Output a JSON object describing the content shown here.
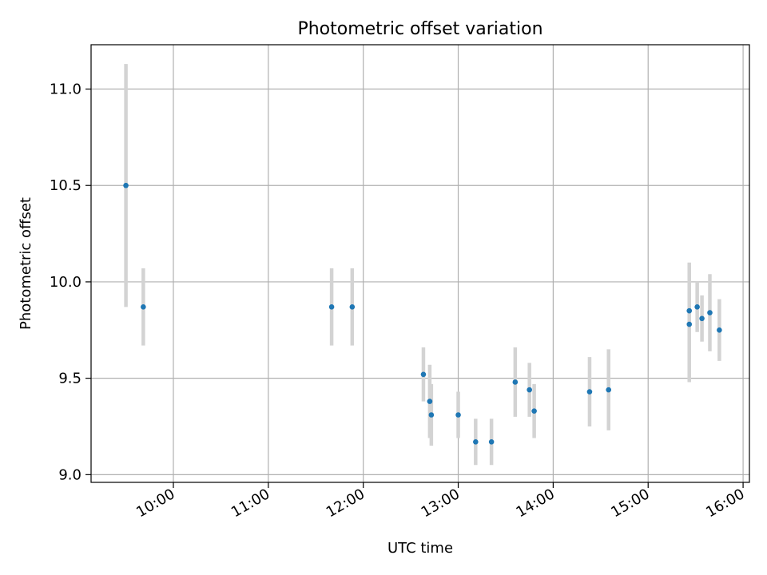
{
  "chart_data": {
    "type": "scatter",
    "title": "Photometric offset variation",
    "xlabel": "UTC time",
    "ylabel": "Photometric offset",
    "x_tick_labels": [
      "10:00",
      "11:00",
      "12:00",
      "13:00",
      "14:00",
      "15:00",
      "16:00"
    ],
    "y_tick_labels": [
      "9.0",
      "9.5",
      "10.0",
      "10.5",
      "11.0"
    ],
    "y_ticks": [
      9.0,
      9.5,
      10.0,
      10.5,
      11.0
    ],
    "xlim": [
      "09:08",
      "16:04"
    ],
    "ylim": [
      8.96,
      11.23
    ],
    "grid": true,
    "point_color": "#1f77b4",
    "errorbar_color": "#d3d3d3",
    "points": [
      {
        "x": "09:30",
        "y": 10.5,
        "err": 0.63
      },
      {
        "x": "09:41",
        "y": 9.87,
        "err": 0.2
      },
      {
        "x": "11:40",
        "y": 9.87,
        "err": 0.2
      },
      {
        "x": "11:53",
        "y": 9.87,
        "err": 0.2
      },
      {
        "x": "12:38",
        "y": 9.52,
        "err": 0.14
      },
      {
        "x": "12:42",
        "y": 9.38,
        "err": 0.19
      },
      {
        "x": "12:43",
        "y": 9.31,
        "err": 0.16
      },
      {
        "x": "13:00",
        "y": 9.31,
        "err": 0.12
      },
      {
        "x": "13:11",
        "y": 9.17,
        "err": 0.12
      },
      {
        "x": "13:21",
        "y": 9.17,
        "err": 0.12
      },
      {
        "x": "13:36",
        "y": 9.48,
        "err": 0.18
      },
      {
        "x": "13:45",
        "y": 9.44,
        "err": 0.14
      },
      {
        "x": "13:48",
        "y": 9.33,
        "err": 0.14
      },
      {
        "x": "14:23",
        "y": 9.43,
        "err": 0.18
      },
      {
        "x": "14:35",
        "y": 9.44,
        "err": 0.21
      },
      {
        "x": "15:26",
        "y": 9.85,
        "err": 0.25
      },
      {
        "x": "15:26",
        "y": 9.78,
        "err": 0.3
      },
      {
        "x": "15:31",
        "y": 9.87,
        "err": 0.13
      },
      {
        "x": "15:34",
        "y": 9.81,
        "err": 0.12
      },
      {
        "x": "15:39",
        "y": 9.84,
        "err": 0.2
      },
      {
        "x": "15:45",
        "y": 9.75,
        "err": 0.16
      }
    ]
  }
}
